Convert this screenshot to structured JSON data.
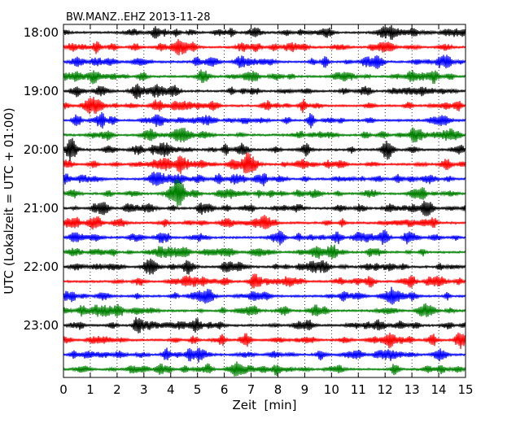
{
  "chart_data": {
    "type": "line",
    "title": "BW.MANZ..EHZ 2013-11-28",
    "xlabel": "Zeit  [min]",
    "ylabel": "UTC (Lokalzeit = UTC + 01:00)",
    "xlim": [
      0,
      15
    ],
    "x_ticks": [
      "0",
      "1",
      "2",
      "3",
      "4",
      "5",
      "6",
      "7",
      "8",
      "9",
      "10",
      "11",
      "12",
      "13",
      "14",
      "15"
    ],
    "y_tick_labels": [
      "18:00",
      "19:00",
      "20:00",
      "21:00",
      "22:00",
      "23:00"
    ],
    "grid": "vertical dotted",
    "trace_colors": [
      "#000000",
      "#ff0000",
      "#0000ff",
      "#008000"
    ],
    "traces": [
      {
        "start": "18:00"
      },
      {
        "start": "18:15"
      },
      {
        "start": "18:30"
      },
      {
        "start": "18:45"
      },
      {
        "start": "19:00"
      },
      {
        "start": "19:15"
      },
      {
        "start": "19:30"
      },
      {
        "start": "19:45"
      },
      {
        "start": "20:00"
      },
      {
        "start": "20:15"
      },
      {
        "start": "20:30"
      },
      {
        "start": "20:45"
      },
      {
        "start": "21:00"
      },
      {
        "start": "21:15"
      },
      {
        "start": "21:30"
      },
      {
        "start": "21:45"
      },
      {
        "start": "22:00"
      },
      {
        "start": "22:15"
      },
      {
        "start": "22:30"
      },
      {
        "start": "22:45"
      },
      {
        "start": "23:00"
      },
      {
        "start": "23:15"
      },
      {
        "start": "23:30"
      },
      {
        "start": "23:45"
      }
    ]
  }
}
